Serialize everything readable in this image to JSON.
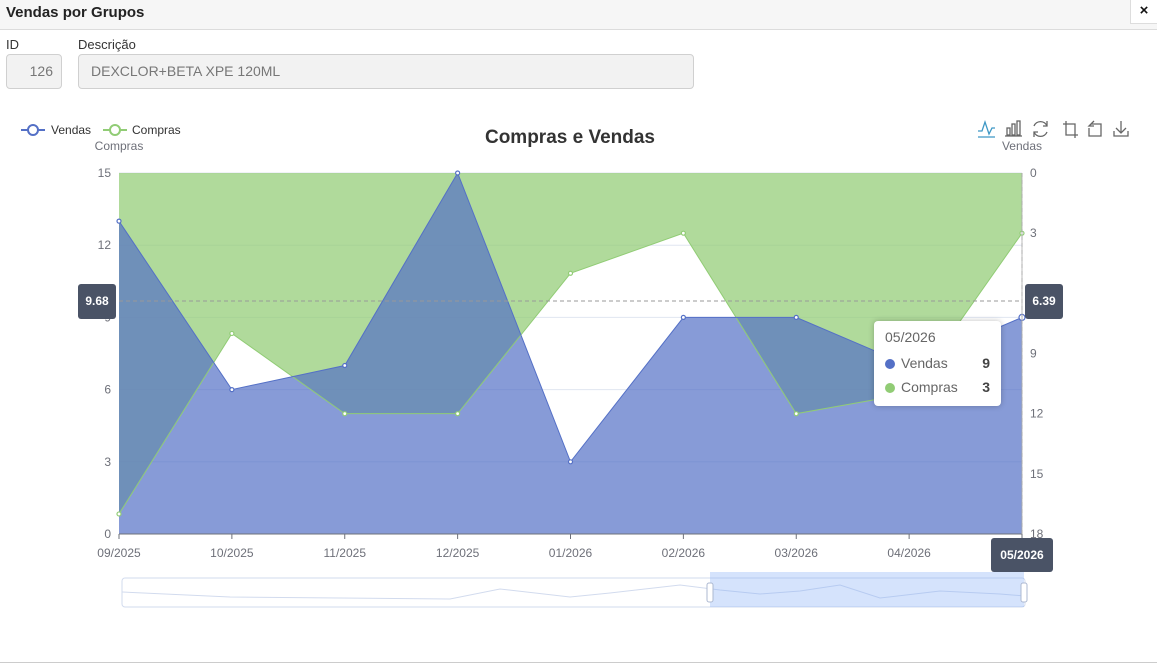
{
  "window": {
    "title": "Vendas por Grupos",
    "close_label": "×"
  },
  "form": {
    "id_label": "ID",
    "id_value": "126",
    "desc_label": "Descrição",
    "desc_value": "DEXCLOR+BETA XPE 120ML"
  },
  "colors": {
    "vendas": "#5470c6",
    "compras": "#91cc75",
    "tooltip_bg": "#4a5366"
  },
  "toolbox": [
    "line-chart-icon",
    "bar-chart-icon",
    "restore-icon",
    "zoom-icon",
    "zoom-reset-icon",
    "download-icon"
  ],
  "chart_data": {
    "type": "area",
    "title": "Compras e Vendas",
    "categories": [
      "09/2025",
      "10/2025",
      "11/2025",
      "12/2025",
      "01/2026",
      "02/2026",
      "03/2026",
      "04/2026",
      "05/2026"
    ],
    "series": [
      {
        "name": "Vendas",
        "axis": "left",
        "values": [
          13,
          6,
          7,
          15,
          3,
          9,
          9,
          7,
          9
        ]
      },
      {
        "name": "Compras",
        "axis": "right",
        "values": [
          17,
          8,
          12,
          12,
          5,
          3,
          12,
          11,
          3
        ]
      }
    ],
    "y_left": {
      "name": "Compras",
      "min": 0,
      "max": 15,
      "ticks": [
        0,
        3,
        6,
        9,
        12,
        15
      ]
    },
    "y_right": {
      "name": "Vendas",
      "min": 0,
      "max": 18,
      "inverse": true,
      "ticks": [
        0,
        3,
        6,
        9,
        12,
        15,
        18
      ]
    },
    "legend": {
      "position": "top-left",
      "items": [
        "Vendas",
        "Compras"
      ]
    },
    "axis_pointer": {
      "x_label": "05/2026",
      "left_label": "9.68",
      "right_label": "6.39"
    },
    "tooltip": {
      "title": "05/2026",
      "rows": [
        {
          "name": "Vendas",
          "value": "9"
        },
        {
          "name": "Compras",
          "value": "3"
        }
      ]
    },
    "grid": true
  }
}
